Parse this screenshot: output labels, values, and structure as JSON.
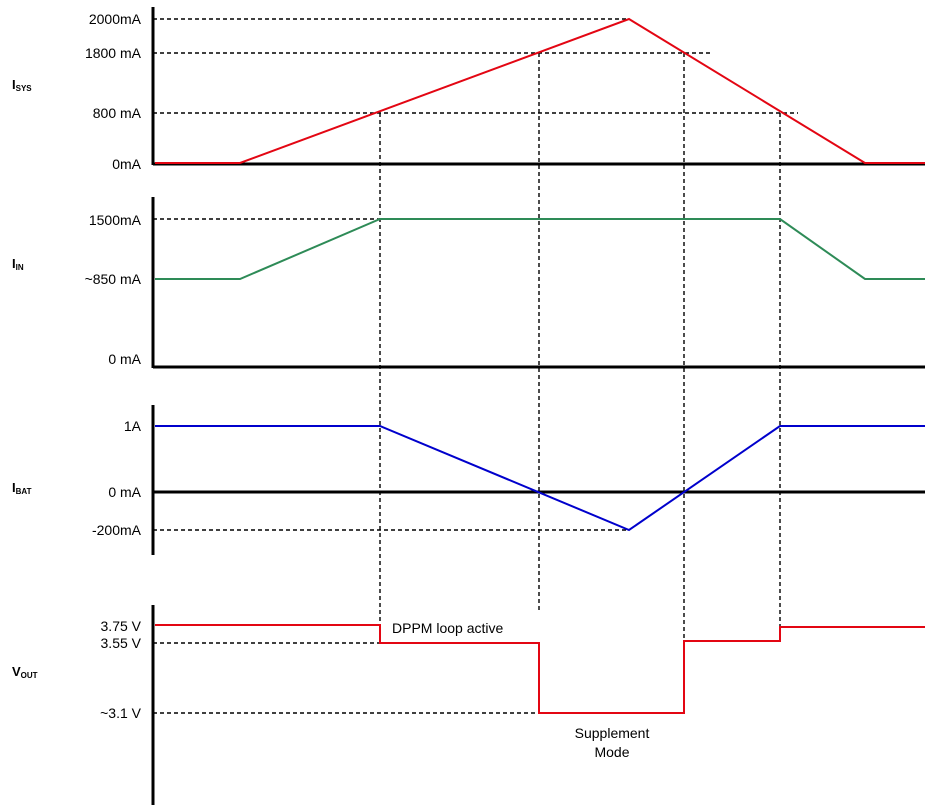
{
  "colors": {
    "isys": "#e30613",
    "iin": "#2e8b57",
    "ibat": "#0000cc",
    "vout": "#e30613"
  },
  "panels": {
    "isys": {
      "signal": "I",
      "subscript": "SYS",
      "ticks": [
        "2000mA",
        "1800 mA",
        "800 mA",
        "0mA"
      ]
    },
    "iin": {
      "signal": "I",
      "subscript": "IN",
      "ticks": [
        "1500mA",
        "~850 mA",
        "0 mA"
      ]
    },
    "ibat": {
      "signal": "I",
      "subscript": "BAT",
      "ticks": [
        "1A",
        "0 mA",
        "-200mA"
      ]
    },
    "vout": {
      "signal": "V",
      "subscript": "OUT",
      "ticks": [
        "3.75 V",
        "3.55 V",
        "~3.1 V"
      ]
    }
  },
  "annotations": {
    "dppm": "DPPM loop active",
    "supplement_line1": "Supplement",
    "supplement_line2": "Mode"
  }
}
